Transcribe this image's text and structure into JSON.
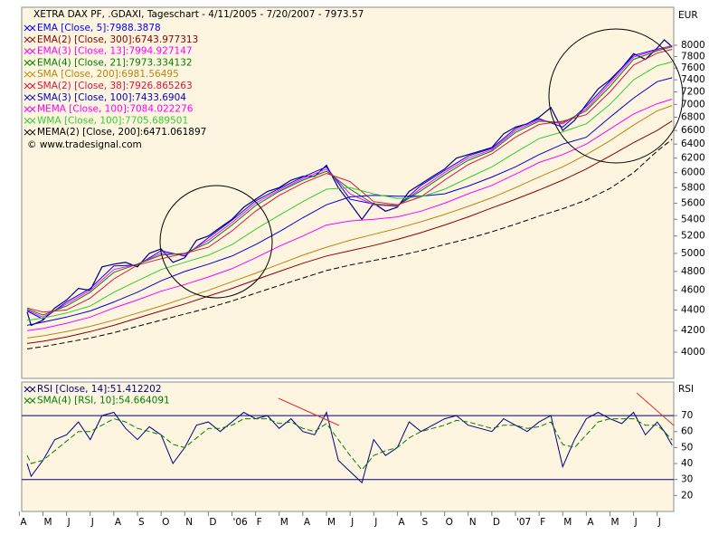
{
  "chart_data": [
    {
      "type": "line",
      "title": "XETRA DAX PF, .GDAXI, Tageschart - 4/11/2005 - 7/20/2007 - 7973.57",
      "source": "© www.tradesignal.com",
      "unit": "EUR",
      "log_scale": true,
      "xlim": [
        0.1,
        27.7
      ],
      "ylim": [
        3770,
        8718
      ],
      "yticks": [
        4000,
        4200,
        4400,
        4600,
        4800,
        5000,
        5200,
        5400,
        5600,
        5800,
        6000,
        6200,
        6400,
        6600,
        6800,
        7000,
        7200,
        7400,
        7600,
        7800,
        8000
      ],
      "x": [
        0.33,
        1,
        2,
        3,
        4,
        5,
        6,
        7,
        8,
        9,
        10,
        11,
        12,
        13,
        14,
        15,
        16,
        17,
        18,
        19,
        20,
        21,
        22,
        23,
        24,
        25,
        26,
        27,
        27.63
      ],
      "series": [
        {
          "color": "#000080",
          "x": [
            0.33,
            0.5,
            1,
            1.5,
            2,
            2.5,
            3,
            3.5,
            4,
            4.5,
            5,
            5.5,
            6,
            6.5,
            7,
            7.5,
            8,
            8.5,
            9,
            9.5,
            10,
            10.5,
            11,
            11.5,
            12,
            12.5,
            13,
            13.5,
            14,
            14.5,
            15,
            15.5,
            16,
            16.5,
            17,
            17.5,
            18,
            18.5,
            19,
            19.5,
            20,
            20.5,
            21,
            21.5,
            22,
            22.5,
            23,
            23.5,
            24,
            24.5,
            25,
            25.5,
            26,
            26.5,
            27,
            27.3,
            27.63
          ],
          "values": [
            4380,
            4250,
            4300,
            4420,
            4500,
            4620,
            4600,
            4850,
            4880,
            4900,
            4850,
            5000,
            5050,
            4900,
            4950,
            5150,
            5200,
            5300,
            5400,
            5550,
            5650,
            5750,
            5800,
            5900,
            5950,
            5950,
            6100,
            5800,
            5600,
            5400,
            5600,
            5500,
            5550,
            5750,
            5850,
            5950,
            6050,
            6200,
            6250,
            6300,
            6350,
            6550,
            6650,
            6700,
            6800,
            6950,
            6600,
            6750,
            7000,
            7250,
            7400,
            7600,
            7850,
            7750,
            7950,
            8100,
            7973.57
          ]
        },
        {
          "name": "EMA [Close, 5]:7988.3878",
          "color": "#0000ff",
          "values": [
            4390,
            4310,
            4480,
            4620,
            4860,
            4870,
            5030,
            4970,
            5180,
            5390,
            5630,
            5790,
            5940,
            6080,
            5650,
            5590,
            5560,
            5830,
            6030,
            6230,
            6340,
            6630,
            6780,
            6650,
            6970,
            7380,
            7820,
            7930,
            7988.3878
          ]
        },
        {
          "name": "EMA(2) [Close, 300]:6743.977313",
          "color": "#8b0000",
          "values": [
            4080,
            4100,
            4140,
            4190,
            4250,
            4320,
            4390,
            4460,
            4540,
            4620,
            4710,
            4800,
            4890,
            4970,
            5030,
            5090,
            5160,
            5240,
            5330,
            5430,
            5540,
            5650,
            5770,
            5900,
            6050,
            6230,
            6420,
            6600,
            6743.977313
          ]
        },
        {
          "name": "EMA(3) [Close, 13]:7994.927147",
          "color": "#ff00ff",
          "values": [
            4400,
            4330,
            4460,
            4600,
            4820,
            4880,
            5000,
            4990,
            5150,
            5360,
            5600,
            5770,
            5920,
            6050,
            5720,
            5580,
            5560,
            5790,
            6000,
            6200,
            6320,
            6600,
            6760,
            6700,
            6930,
            7340,
            7790,
            7920,
            7994.927147
          ]
        },
        {
          "name": "EMA(4) [Close, 21]:7973.334132",
          "color": "#008000",
          "values": [
            4410,
            4350,
            4440,
            4580,
            4790,
            4880,
            4980,
            5000,
            5120,
            5330,
            5570,
            5750,
            5900,
            6020,
            5780,
            5590,
            5570,
            5760,
            5970,
            6170,
            6300,
            6570,
            6740,
            6720,
            6900,
            7290,
            7750,
            7900,
            7973.334132
          ]
        },
        {
          "name": "SMA [Close, 200]:6981.56495",
          "color": "#b8860b",
          "values": [
            4130,
            4150,
            4190,
            4240,
            4300,
            4370,
            4440,
            4520,
            4600,
            4690,
            4780,
            4880,
            4980,
            5070,
            5150,
            5220,
            5290,
            5370,
            5460,
            5560,
            5670,
            5800,
            5940,
            6080,
            6250,
            6450,
            6680,
            6900,
            6981.56495
          ]
        },
        {
          "name": "SMA(2) [Close, 38]:7926.865263",
          "color": "#dc143c",
          "values": [
            4420,
            4380,
            4400,
            4520,
            4720,
            4870,
            4940,
            5000,
            5070,
            5260,
            5500,
            5700,
            5860,
            5990,
            5880,
            5620,
            5580,
            5680,
            5900,
            6110,
            6260,
            6500,
            6690,
            6740,
            6840,
            7200,
            7650,
            7860,
            7926.865263
          ]
        },
        {
          "name": "SMA(3) [Close, 100]:7433.6904",
          "color": "#0000cd",
          "values": [
            4250,
            4280,
            4330,
            4390,
            4480,
            4580,
            4700,
            4800,
            4880,
            4970,
            5100,
            5250,
            5420,
            5580,
            5680,
            5700,
            5690,
            5690,
            5720,
            5820,
            5940,
            6080,
            6250,
            6400,
            6500,
            6800,
            7100,
            7370,
            7433.6904
          ]
        },
        {
          "name": "MEMA [Close, 100]:7084.022276",
          "color": "#ff00ff",
          "values": [
            4200,
            4220,
            4270,
            4330,
            4420,
            4500,
            4590,
            4660,
            4740,
            4830,
            4950,
            5080,
            5200,
            5330,
            5380,
            5400,
            5430,
            5500,
            5600,
            5720,
            5830,
            5980,
            6140,
            6250,
            6400,
            6620,
            6850,
            7010,
            7084.022276
          ]
        },
        {
          "name": "WMA [Close, 100]:7705.689501",
          "color": "#32cd32",
          "values": [
            4300,
            4320,
            4370,
            4440,
            4580,
            4700,
            4820,
            4900,
            4980,
            5100,
            5280,
            5450,
            5620,
            5780,
            5800,
            5720,
            5660,
            5680,
            5780,
            5930,
            6080,
            6280,
            6480,
            6580,
            6700,
            7000,
            7400,
            7640,
            7705.689501
          ]
        },
        {
          "name": "MEMA(2) [Close, 200]:6471.061897",
          "color": "#000000",
          "dash": true,
          "values": [
            4030,
            4050,
            4090,
            4130,
            4180,
            4240,
            4300,
            4360,
            4420,
            4490,
            4570,
            4650,
            4730,
            4810,
            4870,
            4920,
            4970,
            5030,
            5100,
            5170,
            5250,
            5340,
            5440,
            5530,
            5640,
            5790,
            6000,
            6300,
            6471.061897
          ]
        }
      ]
    },
    {
      "type": "line",
      "unit": "RSI",
      "xlim": [
        0.1,
        27.7
      ],
      "ylim": [
        10,
        91
      ],
      "yticks": [
        20,
        30,
        40,
        50,
        60,
        70
      ],
      "levels": [
        30,
        70
      ],
      "level_color": "#000080",
      "xticks": [
        {
          "value": 0,
          "label": "A"
        },
        {
          "value": 1,
          "label": "M"
        },
        {
          "value": 2,
          "label": "J"
        },
        {
          "value": 3,
          "label": "J"
        },
        {
          "value": 4,
          "label": "A"
        },
        {
          "value": 5,
          "label": "S"
        },
        {
          "value": 6,
          "label": "O"
        },
        {
          "value": 7,
          "label": "N"
        },
        {
          "value": 8,
          "label": "D"
        },
        {
          "value": 9,
          "label": "'06"
        },
        {
          "value": 10,
          "label": "F"
        },
        {
          "value": 11,
          "label": "M"
        },
        {
          "value": 12,
          "label": "A"
        },
        {
          "value": 13,
          "label": "M"
        },
        {
          "value": 14,
          "label": "J"
        },
        {
          "value": 15,
          "label": "J"
        },
        {
          "value": 16,
          "label": "A"
        },
        {
          "value": 17,
          "label": "S"
        },
        {
          "value": 18,
          "label": "O"
        },
        {
          "value": 19,
          "label": "N"
        },
        {
          "value": 20,
          "label": "D"
        },
        {
          "value": 21,
          "label": "'07"
        },
        {
          "value": 22,
          "label": "F"
        },
        {
          "value": 23,
          "label": "M"
        },
        {
          "value": 24,
          "label": "A"
        },
        {
          "value": 25,
          "label": "M"
        },
        {
          "value": 26,
          "label": "J"
        },
        {
          "value": 27,
          "label": "J"
        }
      ],
      "x": [
        0.33,
        0.5,
        1,
        1.5,
        2,
        2.5,
        3,
        3.5,
        4,
        4.5,
        5,
        5.5,
        6,
        6.5,
        7,
        7.5,
        8,
        8.5,
        9,
        9.5,
        10,
        10.5,
        11,
        11.5,
        12,
        12.5,
        13,
        13.5,
        14,
        14.5,
        15,
        15.5,
        16,
        16.5,
        17,
        17.5,
        18,
        18.5,
        19,
        19.5,
        20,
        20.5,
        21,
        21.5,
        22,
        22.5,
        23,
        23.5,
        24,
        24.5,
        25,
        25.5,
        26,
        26.5,
        27,
        27.3,
        27.63
      ],
      "series": [
        {
          "name": "RSI [Close, 14]:51.412202",
          "color": "#000080",
          "values": [
            40,
            32,
            42,
            55,
            58,
            66,
            55,
            70,
            72,
            62,
            55,
            63,
            58,
            40,
            50,
            64,
            66,
            60,
            66,
            72,
            68,
            70,
            62,
            68,
            60,
            58,
            72,
            42,
            35,
            28,
            55,
            45,
            50,
            66,
            60,
            64,
            68,
            70,
            64,
            62,
            60,
            68,
            64,
            60,
            66,
            70,
            38,
            55,
            68,
            72,
            68,
            65,
            72,
            58,
            66,
            60,
            51.412202
          ]
        },
        {
          "name": "SMA(4) [RSI, 10]:54.664091",
          "color": "#008000",
          "dash": true,
          "values": [
            45,
            40,
            42,
            48,
            54,
            60,
            60,
            64,
            68,
            66,
            62,
            60,
            58,
            52,
            50,
            56,
            62,
            62,
            64,
            68,
            68,
            68,
            65,
            66,
            62,
            60,
            65,
            55,
            45,
            36,
            45,
            48,
            50,
            56,
            60,
            62,
            64,
            67,
            66,
            64,
            62,
            64,
            64,
            62,
            63,
            66,
            52,
            50,
            58,
            66,
            68,
            68,
            68,
            64,
            64,
            60,
            54.664091
          ]
        }
      ]
    }
  ]
}
